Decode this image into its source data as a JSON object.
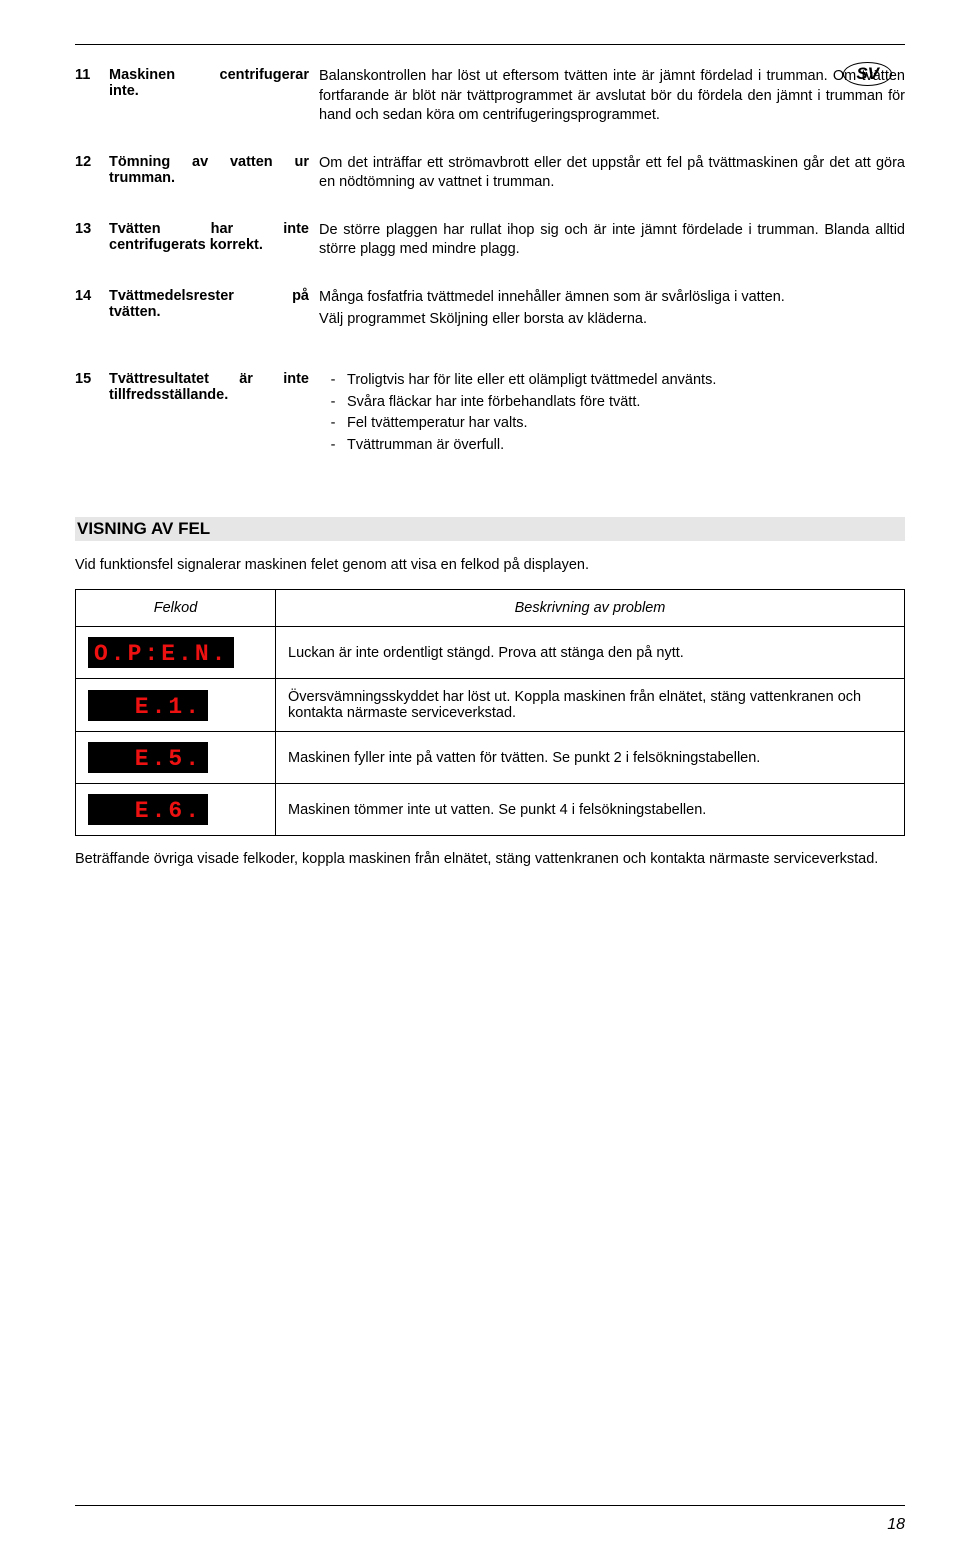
{
  "badge": "SV",
  "rows": [
    {
      "num": "11",
      "label_lines": [
        [
          "Maskinen",
          "centrifugerar"
        ],
        [
          "inte."
        ]
      ],
      "desc": [
        "Balanskontrollen har löst ut eftersom tvätten inte är jämnt fördelad i trumman. Om tvätten fortfarande är blöt när tvättprogrammet är avslutat bör du fördela den jämnt i trumman för hand och sedan köra om centrifugeringsprogrammet."
      ]
    },
    {
      "num": "12",
      "label_lines": [
        [
          "Tömning",
          "av",
          "vatten",
          "ur"
        ],
        [
          "trumman."
        ]
      ],
      "desc": [
        "Om det inträffar ett strömavbrott eller det uppstår ett fel på tvättmaskinen går det att göra en nödtömning av vattnet i trumman."
      ]
    },
    {
      "num": "13",
      "label_lines": [
        [
          "Tvätten",
          "har",
          "inte"
        ],
        [
          "centrifugerats korrekt."
        ]
      ],
      "desc": [
        "De större plaggen har rullat ihop sig och är inte jämnt fördelade i trumman. Blanda alltid större plagg med mindre plagg."
      ]
    },
    {
      "num": "14",
      "label_lines": [
        [
          "Tvättmedelsrester",
          "på"
        ],
        [
          "tvätten."
        ]
      ],
      "desc": [
        "Många fosfatfria tvättmedel innehåller ämnen som är svårlösliga i vatten.",
        "Välj programmet Sköljning eller borsta av kläderna."
      ]
    },
    {
      "num": "15",
      "label_lines": [
        [
          "Tvättresultatet",
          "är",
          "inte"
        ],
        [
          "tillfredsställande."
        ]
      ],
      "bullets": [
        "Troligtvis har för lite eller ett olämpligt tvättmedel använts.",
        "Svåra fläckar har inte förbehandlats före tvätt.",
        "Fel tvättemperatur har valts.",
        "Tvättrumman är överfull."
      ]
    }
  ],
  "section_title": "VISNING AV FEL",
  "intro": "Vid funktionsfel signalerar maskinen felet genom att visa en felkod på displayen.",
  "table": {
    "headers": [
      "Felkod",
      "Beskrivning av problem"
    ],
    "rows": [
      {
        "code": "O.P:E.N.",
        "desc": "Luckan är inte ordentligt stängd. Prova att stänga den på nytt."
      },
      {
        "code": "E.1.",
        "desc": "Översvämningsskyddet har löst ut. Koppla maskinen från elnätet, stäng vattenkranen och kontakta närmaste serviceverkstad."
      },
      {
        "code": "E.5.",
        "desc": "Maskinen fyller inte på vatten för tvätten. Se punkt 2 i felsökningstabellen."
      },
      {
        "code": "E.6.",
        "desc": "Maskinen tömmer inte ut vatten. Se punkt 4 i felsökningstabellen."
      }
    ]
  },
  "afterword": "Beträffande övriga visade felkoder, koppla maskinen från elnätet, stäng vattenkranen och kontakta närmaste serviceverkstad.",
  "page_number": "18",
  "colors": {
    "led_bg": "#000000",
    "led_fg": "#ee1111",
    "section_bg": "#e6e6e6"
  }
}
